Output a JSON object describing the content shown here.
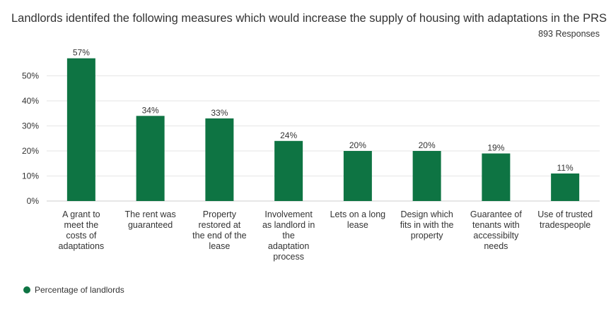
{
  "colors": {
    "bar": "#0e7443",
    "grid": "#e6e6e6",
    "text": "#333333"
  },
  "chart_data": {
    "type": "bar",
    "title": "Landlords identifed the following measures which would increase the supply of housing with adaptations in the PRS",
    "subtitle": "893 Responses",
    "categories": [
      "A grant to meet the costs of adaptations",
      "The rent was guaranteed",
      "Property restored at the end of the lease",
      "Involvement as landlord in the adaptation process",
      "Lets on a long lease",
      "Design which fits in with the property",
      "Guarantee of tenants with accessibilty needs",
      "Use of trusted tradespeople"
    ],
    "category_lines": [
      [
        "A grant to",
        "meet the",
        "costs of",
        "adaptations"
      ],
      [
        "The rent was",
        "guaranteed"
      ],
      [
        "Property",
        "restored at",
        "the end of the",
        "lease"
      ],
      [
        "Involvement",
        "as landlord in",
        "the",
        "adaptation",
        "process"
      ],
      [
        "Lets on a long",
        "lease"
      ],
      [
        "Design which",
        "fits in with the",
        "property"
      ],
      [
        "Guarantee of",
        "tenants with",
        "accessibilty",
        "needs"
      ],
      [
        "Use of trusted",
        "tradespeople"
      ]
    ],
    "series": [
      {
        "name": "Percentage of landlords",
        "values": [
          57,
          34,
          33,
          24,
          20,
          20,
          19,
          11
        ],
        "labels": [
          "57%",
          "34%",
          "33%",
          "24%",
          "20%",
          "20%",
          "19%",
          "11%"
        ]
      }
    ],
    "yticks": [
      0,
      10,
      20,
      30,
      40,
      50
    ],
    "ytick_labels": [
      "0%",
      "10%",
      "20%",
      "30%",
      "40%",
      "50%"
    ],
    "ylim": [
      0,
      57
    ],
    "grid": true,
    "legend_position": "bottom-left"
  }
}
